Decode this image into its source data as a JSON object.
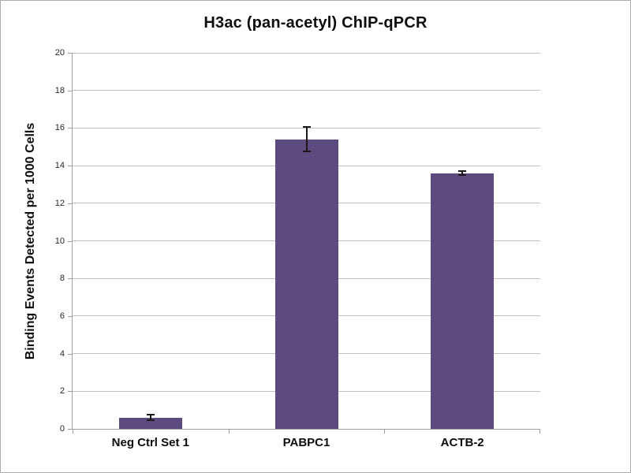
{
  "chart_data": {
    "type": "bar",
    "title": "H3ac (pan-acetyl) ChIP-qPCR",
    "ylabel": "Binding Events Detected per 1000 Cells",
    "xlabel": "",
    "categories": [
      "Neg Ctrl Set 1",
      "PABPC1",
      "ACTB-2"
    ],
    "values": [
      0.6,
      15.4,
      13.6
    ],
    "errors": [
      0.15,
      0.65,
      0.1
    ],
    "ylim": [
      0,
      20
    ],
    "ytick_step": 2,
    "grid": true,
    "legend": false,
    "bar_color": "#5d4a7e",
    "gridline_color": "#bfbfbf",
    "axis_color": "#9d9d9d",
    "text_color": "#0d0d0d"
  }
}
